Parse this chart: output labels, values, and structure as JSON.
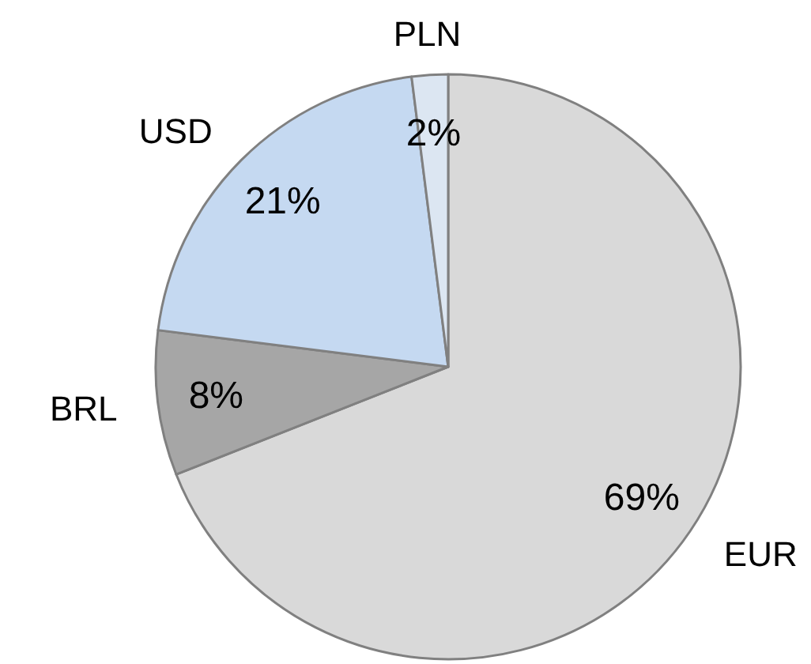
{
  "chart_data": {
    "type": "pie",
    "categories": [
      "EUR",
      "BRL",
      "USD",
      "PLN"
    ],
    "values": [
      69,
      8,
      21,
      2
    ],
    "colors": [
      "#d9d9d9",
      "#a6a6a6",
      "#c5d9f1",
      "#dce6f2"
    ],
    "value_labels": [
      "69%",
      "8%",
      "21%",
      "2%"
    ]
  }
}
